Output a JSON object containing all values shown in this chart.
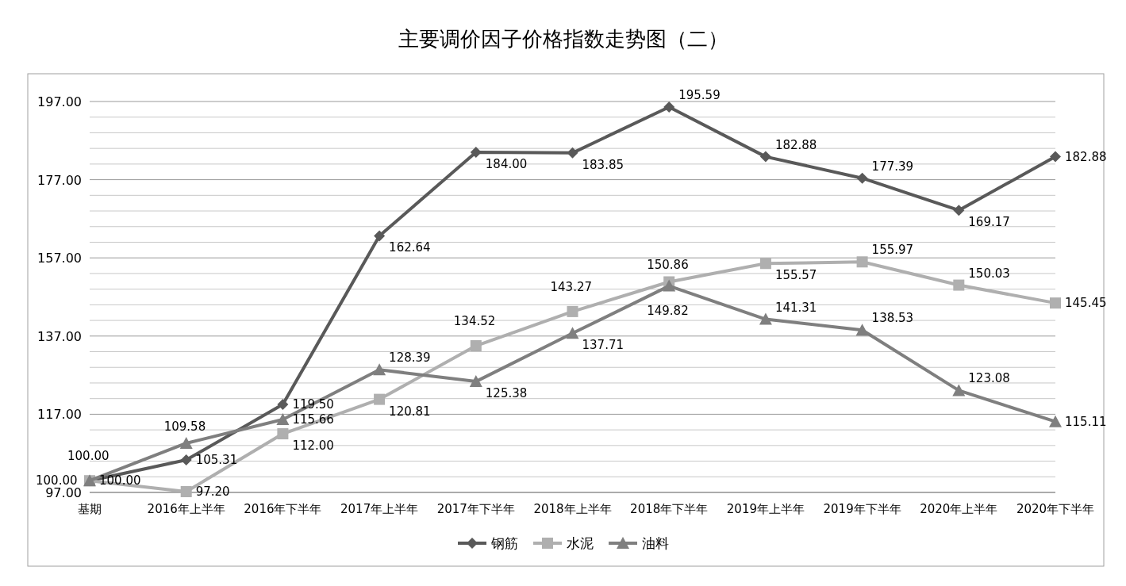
{
  "chart_data": {
    "type": "line",
    "title": "主要调价因子价格指数走势图（二）",
    "categories": [
      "基期",
      "2016年上半年",
      "2016年下半年",
      "2017年上半年",
      "2017年下半年",
      "2018年上半年",
      "2018年下半年",
      "2019年上半年",
      "2019年下半年",
      "2020年上半年",
      "2020年下半年"
    ],
    "series": [
      {
        "name": "钢筋",
        "color": "#595959",
        "marker": "diamond",
        "values": [
          100,
          105.31,
          119.5,
          162.64,
          184,
          183.85,
          195.59,
          182.88,
          177.39,
          169.17,
          182.88
        ],
        "value_labels": [
          "100.00",
          "105.31",
          "119.50",
          "162.64",
          "184.00",
          "183.85",
          "195.59",
          "182.88",
          "177.39",
          "169.17",
          "182.88"
        ]
      },
      {
        "name": "水泥",
        "color": "#afafaf",
        "marker": "square",
        "values": [
          100,
          97.2,
          112,
          120.81,
          134.52,
          143.27,
          150.86,
          155.57,
          155.97,
          150.03,
          145.45
        ],
        "value_labels": [
          "100.00",
          "97.20",
          "112.00",
          "120.81",
          "134.52",
          "143.27",
          "150.86",
          "155.57",
          "155.97",
          "150.03",
          "145.45"
        ]
      },
      {
        "name": "油料",
        "color": "#7f7f7f",
        "marker": "triangle",
        "values": [
          100,
          109.58,
          115.66,
          128.39,
          125.38,
          137.71,
          149.82,
          141.31,
          138.53,
          123.08,
          115.11
        ],
        "value_labels": [
          "100.00",
          "109.58",
          "115.66",
          "128.39",
          "125.38",
          "137.71",
          "149.82",
          "141.31",
          "138.53",
          "123.08",
          "115.11"
        ]
      }
    ],
    "ylim": [
      97,
      197
    ],
    "yticks": [
      {
        "value": 97,
        "label": "97.00"
      },
      {
        "value": 101,
        "label": null
      },
      {
        "value": 105,
        "label": null
      },
      {
        "value": 109,
        "label": null
      },
      {
        "value": 113,
        "label": null
      },
      {
        "value": 117,
        "label": "117.00"
      },
      {
        "value": 121,
        "label": null
      },
      {
        "value": 125,
        "label": null
      },
      {
        "value": 129,
        "label": null
      },
      {
        "value": 133,
        "label": null
      },
      {
        "value": 137,
        "label": "137.00"
      },
      {
        "value": 141,
        "label": null
      },
      {
        "value": 145,
        "label": null
      },
      {
        "value": 149,
        "label": null
      },
      {
        "value": 153,
        "label": null
      },
      {
        "value": 157,
        "label": "157.00"
      },
      {
        "value": 161,
        "label": null
      },
      {
        "value": 165,
        "label": null
      },
      {
        "value": 169,
        "label": null
      },
      {
        "value": 173,
        "label": null
      },
      {
        "value": 177,
        "label": "177.00"
      },
      {
        "value": 181,
        "label": null
      },
      {
        "value": 185,
        "label": null
      },
      {
        "value": 189,
        "label": null
      },
      {
        "value": 193,
        "label": null
      },
      {
        "value": 197,
        "label": "197.00"
      }
    ],
    "grid": "y",
    "legend": "bottom",
    "line_style": "solid"
  }
}
